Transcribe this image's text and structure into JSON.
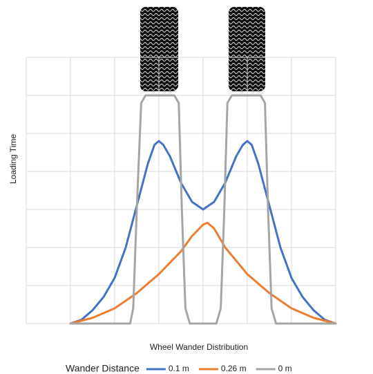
{
  "chart_data": {
    "type": "line",
    "y_label": "Loading Time",
    "x_label": "Wheel Wander Distribution",
    "legend_title": "Wander Distance",
    "xlim": [
      0,
      7
    ],
    "ylim": [
      0,
      7
    ],
    "xticks": [
      0,
      1,
      2,
      3,
      4,
      5,
      6,
      7
    ],
    "yticks": [
      0,
      1,
      2,
      3,
      4,
      5,
      6,
      7
    ],
    "grid": true,
    "legend": "bottom",
    "series": [
      {
        "name": "0.1 m",
        "color": "#4472c4",
        "x": [
          1,
          1.25,
          1.5,
          1.75,
          2,
          2.25,
          2.5,
          2.75,
          2.9,
          3,
          3.1,
          3.25,
          3.5,
          3.75,
          4,
          4.25,
          4.5,
          4.75,
          4.9,
          5,
          5.1,
          5.25,
          5.5,
          5.75,
          6,
          6.25,
          6.5,
          6.75,
          7
        ],
        "values": [
          0,
          0.1,
          0.35,
          0.7,
          1.2,
          2.0,
          3.1,
          4.2,
          4.7,
          4.8,
          4.7,
          4.4,
          3.7,
          3.2,
          3.0,
          3.2,
          3.7,
          4.4,
          4.7,
          4.8,
          4.7,
          4.2,
          3.1,
          2.0,
          1.2,
          0.7,
          0.35,
          0.1,
          0
        ]
      },
      {
        "name": "0.26 m",
        "color": "#ed7d31",
        "x": [
          1,
          1.5,
          2,
          2.5,
          3,
          3.5,
          3.75,
          4,
          4.1,
          4.25,
          4.5,
          5,
          5.5,
          6,
          6.5,
          7
        ],
        "values": [
          0,
          0.15,
          0.4,
          0.8,
          1.3,
          1.9,
          2.3,
          2.6,
          2.65,
          2.5,
          2.0,
          1.3,
          0.8,
          0.4,
          0.15,
          0
        ]
      },
      {
        "name": "0 m",
        "color": "#a5a5a5",
        "x": [
          1,
          2.35,
          2.42,
          2.5,
          2.6,
          2.7,
          3.35,
          3.45,
          3.52,
          3.6,
          3.7,
          4.3,
          4.4,
          4.48,
          4.55,
          4.65,
          5.3,
          5.4,
          5.47,
          5.55,
          5.65,
          7
        ],
        "values": [
          0,
          0,
          0.4,
          3.0,
          5.8,
          6.0,
          6.0,
          5.8,
          3.0,
          0.4,
          0,
          0,
          0.4,
          3.0,
          5.8,
          6.0,
          6.0,
          5.8,
          3.0,
          0.4,
          0,
          0
        ]
      }
    ]
  }
}
